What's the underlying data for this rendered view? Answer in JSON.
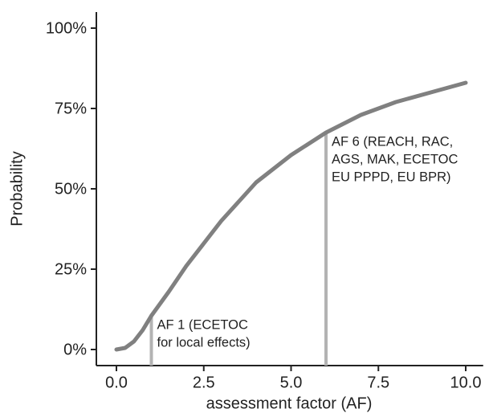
{
  "chart_data": {
    "type": "line",
    "x_label": "assessment factor (AF)",
    "y_label": "Probability",
    "x": [
      0,
      0.25,
      0.5,
      0.75,
      1,
      1.5,
      2,
      2.5,
      3,
      3.5,
      4,
      5,
      6,
      7,
      8,
      9,
      10
    ],
    "series": [
      {
        "color": "#808080",
        "values": [
          0,
          0.5,
          2.5,
          6,
          10.5,
          18,
          26,
          33,
          40,
          46,
          52,
          60.5,
          67.5,
          73,
          77,
          80,
          83
        ]
      }
    ],
    "xlim": [
      -0.5,
      10.5
    ],
    "xticks": [
      {
        "value": 0,
        "label": "0.0"
      },
      2.5,
      {
        "value": 5,
        "label": "5.0"
      },
      7.5,
      {
        "value": 10,
        "label": "10.0"
      }
    ],
    "ylim": [
      -5,
      105
    ],
    "yticks": [
      {
        "value": 0,
        "label": "0%"
      },
      {
        "value": 25,
        "label": "25%"
      },
      {
        "value": 50,
        "label": "50%"
      },
      {
        "value": 75,
        "label": "75%"
      },
      {
        "value": 100,
        "label": "100%"
      }
    ],
    "annotations": [
      {
        "x": 1,
        "y": 10.5,
        "color": "#b3b3b3",
        "lines": [
          "AF 1 (ECETOC",
          "for local effects)"
        ]
      },
      {
        "x": 6,
        "y": 67.5,
        "color": "#b3b3b3",
        "lines": [
          "AF 6 (REACH, RAC,",
          "AGS, MAK, ECETOC",
          "EU PPPD, EU BPR)"
        ]
      }
    ]
  }
}
